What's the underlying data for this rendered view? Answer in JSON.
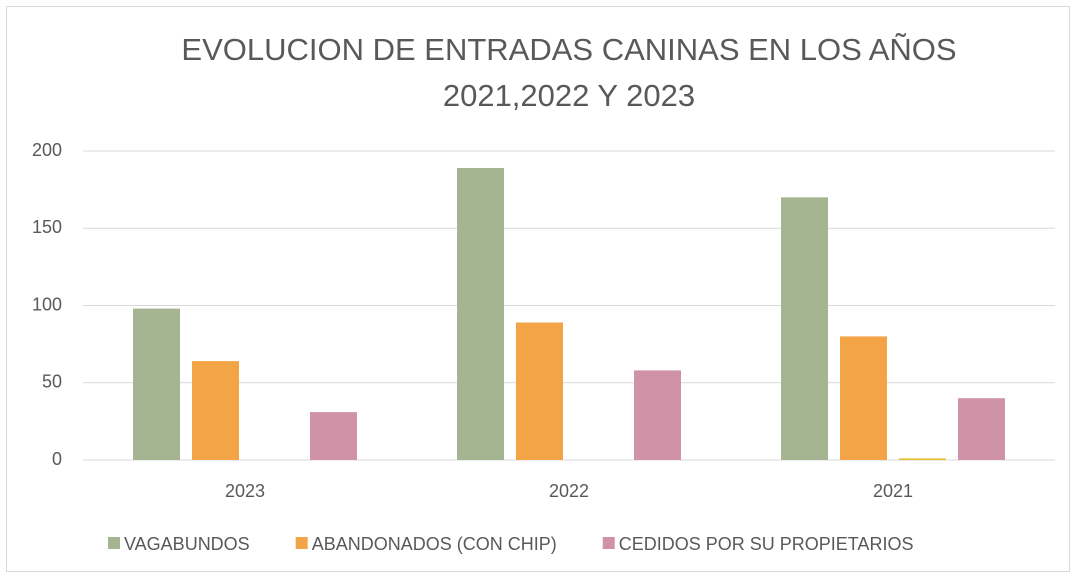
{
  "chart_data": {
    "type": "bar",
    "title": [
      "EVOLUCION DE ENTRADAS CANINAS EN LOS AÑOS",
      "2021,2022 Y 2023"
    ],
    "categories": [
      "2023",
      "2022",
      "2021"
    ],
    "series": [
      {
        "name": "VAGABUNDOS",
        "color": "#a5b592",
        "values": [
          98,
          189,
          170
        ]
      },
      {
        "name": "ABANDONADOS (CON CHIP)",
        "color": "#f3a447",
        "values": [
          64,
          89,
          80
        ]
      },
      {
        "color": "#e7bc29",
        "values": [
          0,
          0,
          1
        ]
      },
      {
        "name": "CEDIDOS POR SU PROPIETARIOS",
        "color": "#d092a7",
        "values": [
          31,
          58,
          40
        ]
      }
    ],
    "ylim": [
      0,
      200
    ],
    "yticks": [
      0,
      50,
      100,
      150,
      200
    ],
    "grid": true,
    "legend": "bottom"
  }
}
